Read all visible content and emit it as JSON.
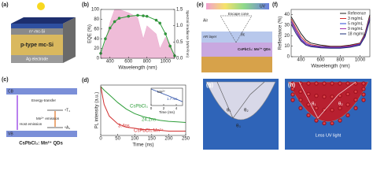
{
  "panels": {
    "a": {
      "letter": "(a)",
      "labels": [
        "n⁺-mc-Si",
        "p-type mc-Si",
        "Ag electrode"
      ]
    },
    "c": {
      "letter": "(c)",
      "labels": [
        "CB",
        "VB",
        "Energy-transfer",
        "⁴T₁",
        "⁶A₁",
        "Mn²⁺ emission",
        "Host emission",
        "CsPbCl₃: Mn²⁺ QDs"
      ]
    },
    "e": {
      "letter": "(e)",
      "labels": [
        "UV",
        "Air",
        "Escape cone",
        "AR layer",
        "CsPbCl₃: Mn²⁺ QDs",
        "θc"
      ]
    },
    "g": {
      "letter": "(g)",
      "labels": [
        "θ₁",
        "θ₂",
        "θ₃"
      ]
    },
    "h": {
      "letter": "(h)",
      "labels": [
        "θ₁",
        "θ₂",
        "Less UV light"
      ]
    }
  },
  "chart_data": [
    {
      "type": "line",
      "panel": "(b)",
      "xlabel": "Wavelength (nm)",
      "ylabel": "EQE (%)",
      "y2label": "Spectral irradiance (W/m²/nm)",
      "x": [
        300,
        350,
        400,
        450,
        500,
        600,
        700,
        760,
        800,
        900,
        940,
        1000,
        1050,
        1100
      ],
      "xlim": [
        300,
        1100
      ],
      "xticks": [
        400,
        600,
        800,
        1000
      ],
      "ylim": [
        0,
        100
      ],
      "yticks": [
        0,
        20,
        40,
        60,
        80,
        100
      ],
      "y2lim": [
        0,
        1.5
      ],
      "y2ticks": [
        {
          "value": 0,
          "label": "0.0"
        },
        0.5,
        {
          "value": 1,
          "label": "1.0"
        },
        1.5
      ],
      "series": [
        {
          "color": "#e8a0c8",
          "kind": "area",
          "axis": "y2",
          "values": [
            0.05,
            0.5,
            1.1,
            1.5,
            1.5,
            1.4,
            1.25,
            0.6,
            1.0,
            0.75,
            0.3,
            0.65,
            0.45,
            0.05
          ]
        },
        {
          "color": "#2e9e3a",
          "kind": "line",
          "marker": "circle",
          "values": [
            10,
            40,
            62,
            75,
            82,
            86,
            88,
            87,
            86,
            78,
            72,
            50,
            25,
            5
          ]
        }
      ]
    },
    {
      "type": "line",
      "panel": "(d)",
      "xlabel": "Time (ns)",
      "ylabel": "PL intensity (a.u.)",
      "ylog": true,
      "x": [
        0,
        10,
        25,
        50,
        75,
        100,
        125,
        150,
        175,
        200,
        225,
        250
      ],
      "xlim": [
        0,
        250
      ],
      "xticks": [
        0,
        50,
        100,
        150,
        200,
        250
      ],
      "ylim": [
        0.003,
        1.2
      ],
      "series": [
        {
          "color": "#2e9e3a",
          "kind": "line",
          "values": [
            1,
            0.65,
            0.38,
            0.15,
            0.07,
            0.04,
            0.028,
            0.022,
            0.018,
            0.016,
            0.015,
            0.014
          ]
        },
        {
          "color": "#d23030",
          "kind": "line",
          "values": [
            1,
            0.12,
            0.03,
            0.012,
            0.008,
            0.007,
            0.006,
            0.006,
            0.0055,
            0.005,
            0.005,
            0.005
          ]
        }
      ],
      "annotations": [
        "CsPbCl₃",
        "24.2ns",
        "3.4ns",
        "CsPbCl₃:Mn²⁺"
      ]
    },
    {
      "type": "line",
      "xlabel": "Time (ms)",
      "ylog": true,
      "x": [
        0,
        1,
        2,
        3,
        4,
        5
      ],
      "xlim": [
        0,
        5
      ],
      "xticks": [
        0,
        2,
        4
      ],
      "ylim": [
        0.02,
        1.2
      ],
      "series": [
        {
          "color": "#2c4fa8",
          "kind": "line",
          "values": [
            1,
            0.55,
            0.3,
            0.17,
            0.09,
            0.05
          ]
        }
      ],
      "annotations": [
        "Mn²⁺",
        "1.7 ms"
      ]
    },
    {
      "type": "line",
      "panel": "(f)",
      "xlabel": "Wavelength (nm)",
      "ylabel": "Reflectance (%)",
      "legend": "upper right",
      "x": [
        300,
        350,
        400,
        450,
        500,
        600,
        700,
        800,
        900,
        1000,
        1050,
        1100
      ],
      "xlim": [
        300,
        1100
      ],
      "xticks": [
        400,
        600,
        800,
        1000
      ],
      "ylim": [
        0,
        45
      ],
      "yticks": [
        0,
        10,
        20,
        30,
        40
      ],
      "series": [
        {
          "name": "Reference",
          "color": "#222222",
          "values": [
            38,
            30,
            22,
            16,
            13,
            11,
            10,
            10,
            11,
            13,
            22,
            40
          ]
        },
        {
          "name": "3 mg/mL",
          "color": "#d42a2a",
          "values": [
            36,
            27,
            19,
            14,
            11.5,
            10,
            9.5,
            9.5,
            10.5,
            12.5,
            21,
            38
          ]
        },
        {
          "name": "5 mg/mL",
          "color": "#2a47d4",
          "values": [
            34,
            25,
            17,
            12.5,
            10.5,
            9.5,
            9,
            9,
            10,
            12,
            20,
            37
          ]
        },
        {
          "name": "9 mg/mL",
          "color": "#a02aa8",
          "values": [
            33,
            24,
            16,
            12,
            10,
            9,
            8.5,
            8.5,
            9.5,
            11.5,
            19.5,
            36
          ]
        },
        {
          "name": "18 mg/mL",
          "color": "#1b2c78",
          "values": [
            31,
            22,
            15,
            11,
            9.5,
            8.5,
            8,
            8,
            9,
            11,
            19,
            35
          ]
        }
      ]
    }
  ]
}
